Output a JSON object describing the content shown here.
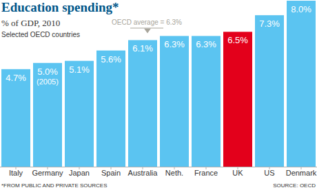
{
  "chart_data": {
    "type": "bar",
    "title": "Education spending*",
    "subtitle": "% of GDP, 2010",
    "subtitle2": "Selected OECD countries",
    "categories": [
      "Italy",
      "Germany",
      "Japan",
      "Spain",
      "Australia",
      "Neth.",
      "France",
      "UK",
      "US",
      "Denmark"
    ],
    "values": [
      4.7,
      5.0,
      5.1,
      5.6,
      6.1,
      6.3,
      6.3,
      6.5,
      7.3,
      8.0
    ],
    "value_labels": [
      "4.7%",
      "5.0%",
      "5.1%",
      "5.6%",
      "6.1%",
      "6.3%",
      "6.3%",
      "6.5%",
      "7.3%",
      "8.0%"
    ],
    "colors": [
      "#5bc4f1",
      "#5bc4f1",
      "#5bc4f1",
      "#5bc4f1",
      "#5bc4f1",
      "#5bc4f1",
      "#5bc4f1",
      "#e3001b",
      "#5bc4f1",
      "#5bc4f1"
    ],
    "ylim": [
      0,
      8
    ],
    "data_labels": true,
    "tick_labels": "x",
    "grid": false,
    "annotations": [
      {
        "text": "OECD average = 6.3%",
        "category": "Australia"
      },
      {
        "text": "(2005)",
        "category": "Germany"
      }
    ],
    "note": "*FROM PUBLIC AND PRIVATE SOURCES",
    "source": "SOURCE: OECD"
  }
}
